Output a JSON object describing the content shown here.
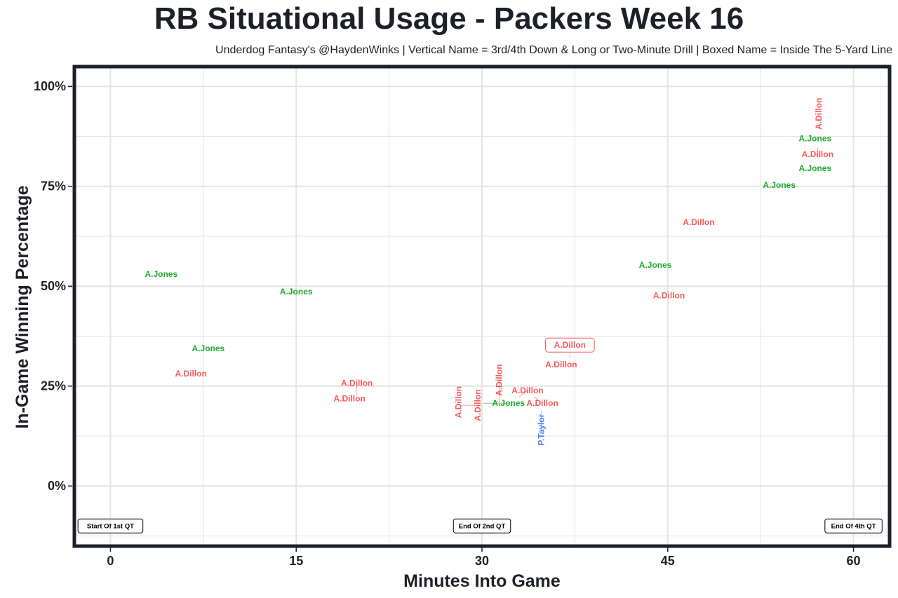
{
  "chart_data": {
    "type": "scatter",
    "title": "RB Situational Usage - Packers Week 16",
    "subtitle": "Underdog Fantasy's @HaydenWinks | Vertical Name = 3rd/4th Down & Long or Two-Minute Drill | Boxed Name = Inside The 5-Yard Line",
    "xlabel": "Minutes Into Game",
    "ylabel": "In-Game Winning Percentage",
    "xlim": [
      -2.8,
      62.8
    ],
    "ylim": [
      -14.7,
      104.6
    ],
    "xticks": [
      0,
      15,
      30,
      45,
      60
    ],
    "xtick_labels": [
      "0",
      "15",
      "30",
      "45",
      "60"
    ],
    "yticks": [
      0,
      25,
      50,
      75,
      100
    ],
    "ytick_labels": [
      "0%",
      "25%",
      "50%",
      "75%",
      "100%"
    ],
    "grid": true,
    "colors": {
      "A.Jones": "#1aab2b",
      "A.Dillon": "#f8585a",
      "P.Taylor": "#4b7ff5"
    },
    "annotations": [
      {
        "text": "Start Of 1st QT",
        "x": 0,
        "y": -10
      },
      {
        "text": "End Of 2nd QT",
        "x": 30,
        "y": -10
      },
      {
        "text": "End Of 4th QT",
        "x": 60,
        "y": -10
      }
    ],
    "points": [
      {
        "name": "A.Jones",
        "x": 4.1,
        "y": 53.0,
        "vertical": false,
        "boxed": false
      },
      {
        "name": "A.Jones",
        "x": 15.0,
        "y": 48.6,
        "vertical": false,
        "boxed": false
      },
      {
        "name": "A.Jones",
        "x": 7.9,
        "y": 34.4,
        "vertical": false,
        "boxed": false
      },
      {
        "name": "A.Dillon",
        "x": 6.5,
        "y": 28.1,
        "vertical": false,
        "boxed": false
      },
      {
        "name": "A.Dillon",
        "x": 19.3,
        "y": 21.9,
        "vertical": false,
        "boxed": false
      },
      {
        "name": "A.Dillon",
        "x": 19.9,
        "y": 22.6,
        "vertical": false,
        "boxed": false
      },
      {
        "name": "A.Dillon",
        "x": 28.1,
        "y": 21.0,
        "vertical": true,
        "boxed": false
      },
      {
        "name": "A.Dillon",
        "x": 28.3,
        "y": 20.2,
        "vertical": true,
        "boxed": false
      },
      {
        "name": "A.Jones",
        "x": 30.1,
        "y": 20.7,
        "vertical": false,
        "boxed": false
      },
      {
        "name": "A.Dillon",
        "x": 31.4,
        "y": 20.2,
        "vertical": true,
        "boxed": false
      },
      {
        "name": "A.Dillon",
        "x": 33.0,
        "y": 22.3,
        "vertical": false,
        "boxed": false
      },
      {
        "name": "A.Dillon",
        "x": 34.2,
        "y": 22.3,
        "vertical": false,
        "boxed": false
      },
      {
        "name": "P.Taylor",
        "x": 34.8,
        "y": 18.8,
        "vertical": true,
        "boxed": false
      },
      {
        "name": "A.Dillon",
        "x": 36.4,
        "y": 30.4,
        "vertical": false,
        "boxed": false
      },
      {
        "name": "A.Dillon",
        "x": 37.1,
        "y": 32.1,
        "vertical": false,
        "boxed": true
      },
      {
        "name": "A.Jones",
        "x": 44.0,
        "y": 55.3,
        "vertical": false,
        "boxed": false
      },
      {
        "name": "A.Dillon",
        "x": 45.1,
        "y": 47.7,
        "vertical": false,
        "boxed": false
      },
      {
        "name": "A.Dillon",
        "x": 47.5,
        "y": 66.0,
        "vertical": false,
        "boxed": false
      },
      {
        "name": "A.Jones",
        "x": 54.0,
        "y": 75.3,
        "vertical": false,
        "boxed": false
      },
      {
        "name": "A.Jones",
        "x": 56.9,
        "y": 79.5,
        "vertical": false,
        "boxed": false
      },
      {
        "name": "A.Jones",
        "x": 56.9,
        "y": 87.0,
        "vertical": false,
        "boxed": false
      },
      {
        "name": "A.Dillon",
        "x": 57.1,
        "y": 84.6,
        "vertical": false,
        "boxed": false
      },
      {
        "name": "A.Dillon",
        "x": 57.2,
        "y": 90.0,
        "vertical": true,
        "boxed": false
      }
    ]
  }
}
